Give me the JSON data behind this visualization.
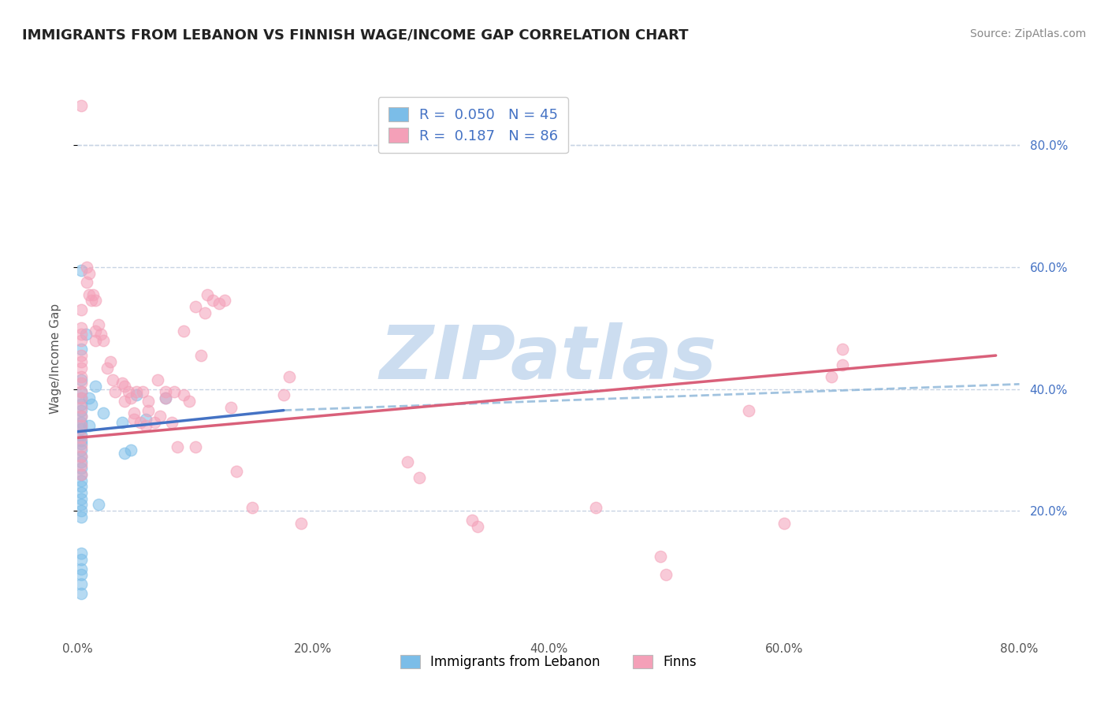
{
  "title": "IMMIGRANTS FROM LEBANON VS FINNISH WAGE/INCOME GAP CORRELATION CHART",
  "source_text": "Source: ZipAtlas.com",
  "ylabel": "Wage/Income Gap",
  "xlim": [
    0.0,
    0.8
  ],
  "ylim": [
    0.0,
    0.9
  ],
  "xtick_labels": [
    "0.0%",
    "20.0%",
    "40.0%",
    "60.0%",
    "80.0%"
  ],
  "xtick_vals": [
    0.0,
    0.2,
    0.4,
    0.6,
    0.8
  ],
  "ytick_labels": [
    "20.0%",
    "40.0%",
    "60.0%",
    "80.0%"
  ],
  "ytick_vals": [
    0.2,
    0.4,
    0.6,
    0.8
  ],
  "legend_r1": "R =  0.050",
  "legend_n1": "N = 45",
  "legend_r2": "R =  0.187",
  "legend_n2": "N = 86",
  "legend_label1": "Immigrants from Lebanon",
  "legend_label2": "Finns",
  "blue_color": "#7bbde8",
  "pink_color": "#f4a0b8",
  "blue_line_color": "#4472c4",
  "pink_line_color": "#d9607a",
  "dash_line_color": "#8ab4d8",
  "watermark": "ZIPatlas",
  "watermark_color": "#ccddf0",
  "background_color": "#ffffff",
  "grid_color": "#c8d4e4",
  "title_color": "#222222",
  "axis_label_color": "#555555",
  "right_axis_color": "#4472c4",
  "blue_scatter": [
    [
      0.003,
      0.595
    ],
    [
      0.003,
      0.465
    ],
    [
      0.003,
      0.415
    ],
    [
      0.003,
      0.395
    ],
    [
      0.003,
      0.385
    ],
    [
      0.003,
      0.375
    ],
    [
      0.003,
      0.365
    ],
    [
      0.003,
      0.355
    ],
    [
      0.003,
      0.345
    ],
    [
      0.003,
      0.34
    ],
    [
      0.003,
      0.335
    ],
    [
      0.003,
      0.325
    ],
    [
      0.003,
      0.315
    ],
    [
      0.003,
      0.31
    ],
    [
      0.003,
      0.3
    ],
    [
      0.003,
      0.29
    ],
    [
      0.003,
      0.28
    ],
    [
      0.003,
      0.27
    ],
    [
      0.003,
      0.26
    ],
    [
      0.003,
      0.25
    ],
    [
      0.003,
      0.24
    ],
    [
      0.003,
      0.23
    ],
    [
      0.003,
      0.22
    ],
    [
      0.003,
      0.21
    ],
    [
      0.003,
      0.2
    ],
    [
      0.003,
      0.19
    ],
    [
      0.003,
      0.13
    ],
    [
      0.003,
      0.12
    ],
    [
      0.003,
      0.105
    ],
    [
      0.003,
      0.095
    ],
    [
      0.003,
      0.08
    ],
    [
      0.003,
      0.065
    ],
    [
      0.007,
      0.49
    ],
    [
      0.01,
      0.385
    ],
    [
      0.01,
      0.34
    ],
    [
      0.012,
      0.375
    ],
    [
      0.015,
      0.405
    ],
    [
      0.018,
      0.21
    ],
    [
      0.022,
      0.36
    ],
    [
      0.038,
      0.345
    ],
    [
      0.04,
      0.295
    ],
    [
      0.045,
      0.3
    ],
    [
      0.05,
      0.39
    ],
    [
      0.058,
      0.35
    ],
    [
      0.075,
      0.385
    ]
  ],
  "pink_scatter": [
    [
      0.003,
      0.865
    ],
    [
      0.003,
      0.53
    ],
    [
      0.003,
      0.5
    ],
    [
      0.003,
      0.49
    ],
    [
      0.003,
      0.48
    ],
    [
      0.003,
      0.455
    ],
    [
      0.003,
      0.445
    ],
    [
      0.003,
      0.435
    ],
    [
      0.003,
      0.42
    ],
    [
      0.003,
      0.41
    ],
    [
      0.003,
      0.395
    ],
    [
      0.003,
      0.385
    ],
    [
      0.003,
      0.37
    ],
    [
      0.003,
      0.355
    ],
    [
      0.003,
      0.34
    ],
    [
      0.003,
      0.32
    ],
    [
      0.003,
      0.305
    ],
    [
      0.003,
      0.29
    ],
    [
      0.003,
      0.275
    ],
    [
      0.003,
      0.26
    ],
    [
      0.008,
      0.6
    ],
    [
      0.008,
      0.575
    ],
    [
      0.01,
      0.59
    ],
    [
      0.01,
      0.555
    ],
    [
      0.012,
      0.545
    ],
    [
      0.013,
      0.555
    ],
    [
      0.015,
      0.545
    ],
    [
      0.015,
      0.495
    ],
    [
      0.015,
      0.48
    ],
    [
      0.018,
      0.505
    ],
    [
      0.02,
      0.49
    ],
    [
      0.022,
      0.48
    ],
    [
      0.025,
      0.435
    ],
    [
      0.028,
      0.445
    ],
    [
      0.03,
      0.415
    ],
    [
      0.032,
      0.395
    ],
    [
      0.038,
      0.41
    ],
    [
      0.04,
      0.405
    ],
    [
      0.04,
      0.38
    ],
    [
      0.043,
      0.395
    ],
    [
      0.045,
      0.385
    ],
    [
      0.048,
      0.36
    ],
    [
      0.048,
      0.35
    ],
    [
      0.05,
      0.395
    ],
    [
      0.053,
      0.345
    ],
    [
      0.055,
      0.395
    ],
    [
      0.058,
      0.34
    ],
    [
      0.06,
      0.38
    ],
    [
      0.06,
      0.365
    ],
    [
      0.065,
      0.345
    ],
    [
      0.068,
      0.415
    ],
    [
      0.07,
      0.355
    ],
    [
      0.075,
      0.395
    ],
    [
      0.075,
      0.385
    ],
    [
      0.08,
      0.345
    ],
    [
      0.082,
      0.395
    ],
    [
      0.085,
      0.305
    ],
    [
      0.09,
      0.495
    ],
    [
      0.09,
      0.39
    ],
    [
      0.095,
      0.38
    ],
    [
      0.1,
      0.305
    ],
    [
      0.1,
      0.535
    ],
    [
      0.105,
      0.455
    ],
    [
      0.108,
      0.525
    ],
    [
      0.11,
      0.555
    ],
    [
      0.115,
      0.545
    ],
    [
      0.12,
      0.54
    ],
    [
      0.125,
      0.545
    ],
    [
      0.13,
      0.37
    ],
    [
      0.135,
      0.265
    ],
    [
      0.148,
      0.205
    ],
    [
      0.175,
      0.39
    ],
    [
      0.18,
      0.42
    ],
    [
      0.19,
      0.18
    ],
    [
      0.28,
      0.28
    ],
    [
      0.29,
      0.255
    ],
    [
      0.335,
      0.185
    ],
    [
      0.34,
      0.175
    ],
    [
      0.44,
      0.205
    ],
    [
      0.495,
      0.125
    ],
    [
      0.5,
      0.095
    ],
    [
      0.57,
      0.365
    ],
    [
      0.6,
      0.18
    ],
    [
      0.64,
      0.42
    ],
    [
      0.65,
      0.465
    ],
    [
      0.65,
      0.44
    ]
  ],
  "blue_line_x": [
    0.0,
    0.175
  ],
  "blue_line_y": [
    0.33,
    0.365
  ],
  "pink_line_x": [
    0.0,
    0.78
  ],
  "pink_line_y": [
    0.32,
    0.455
  ],
  "dash_line_x": [
    0.175,
    0.8
  ],
  "dash_line_y": [
    0.365,
    0.408
  ]
}
